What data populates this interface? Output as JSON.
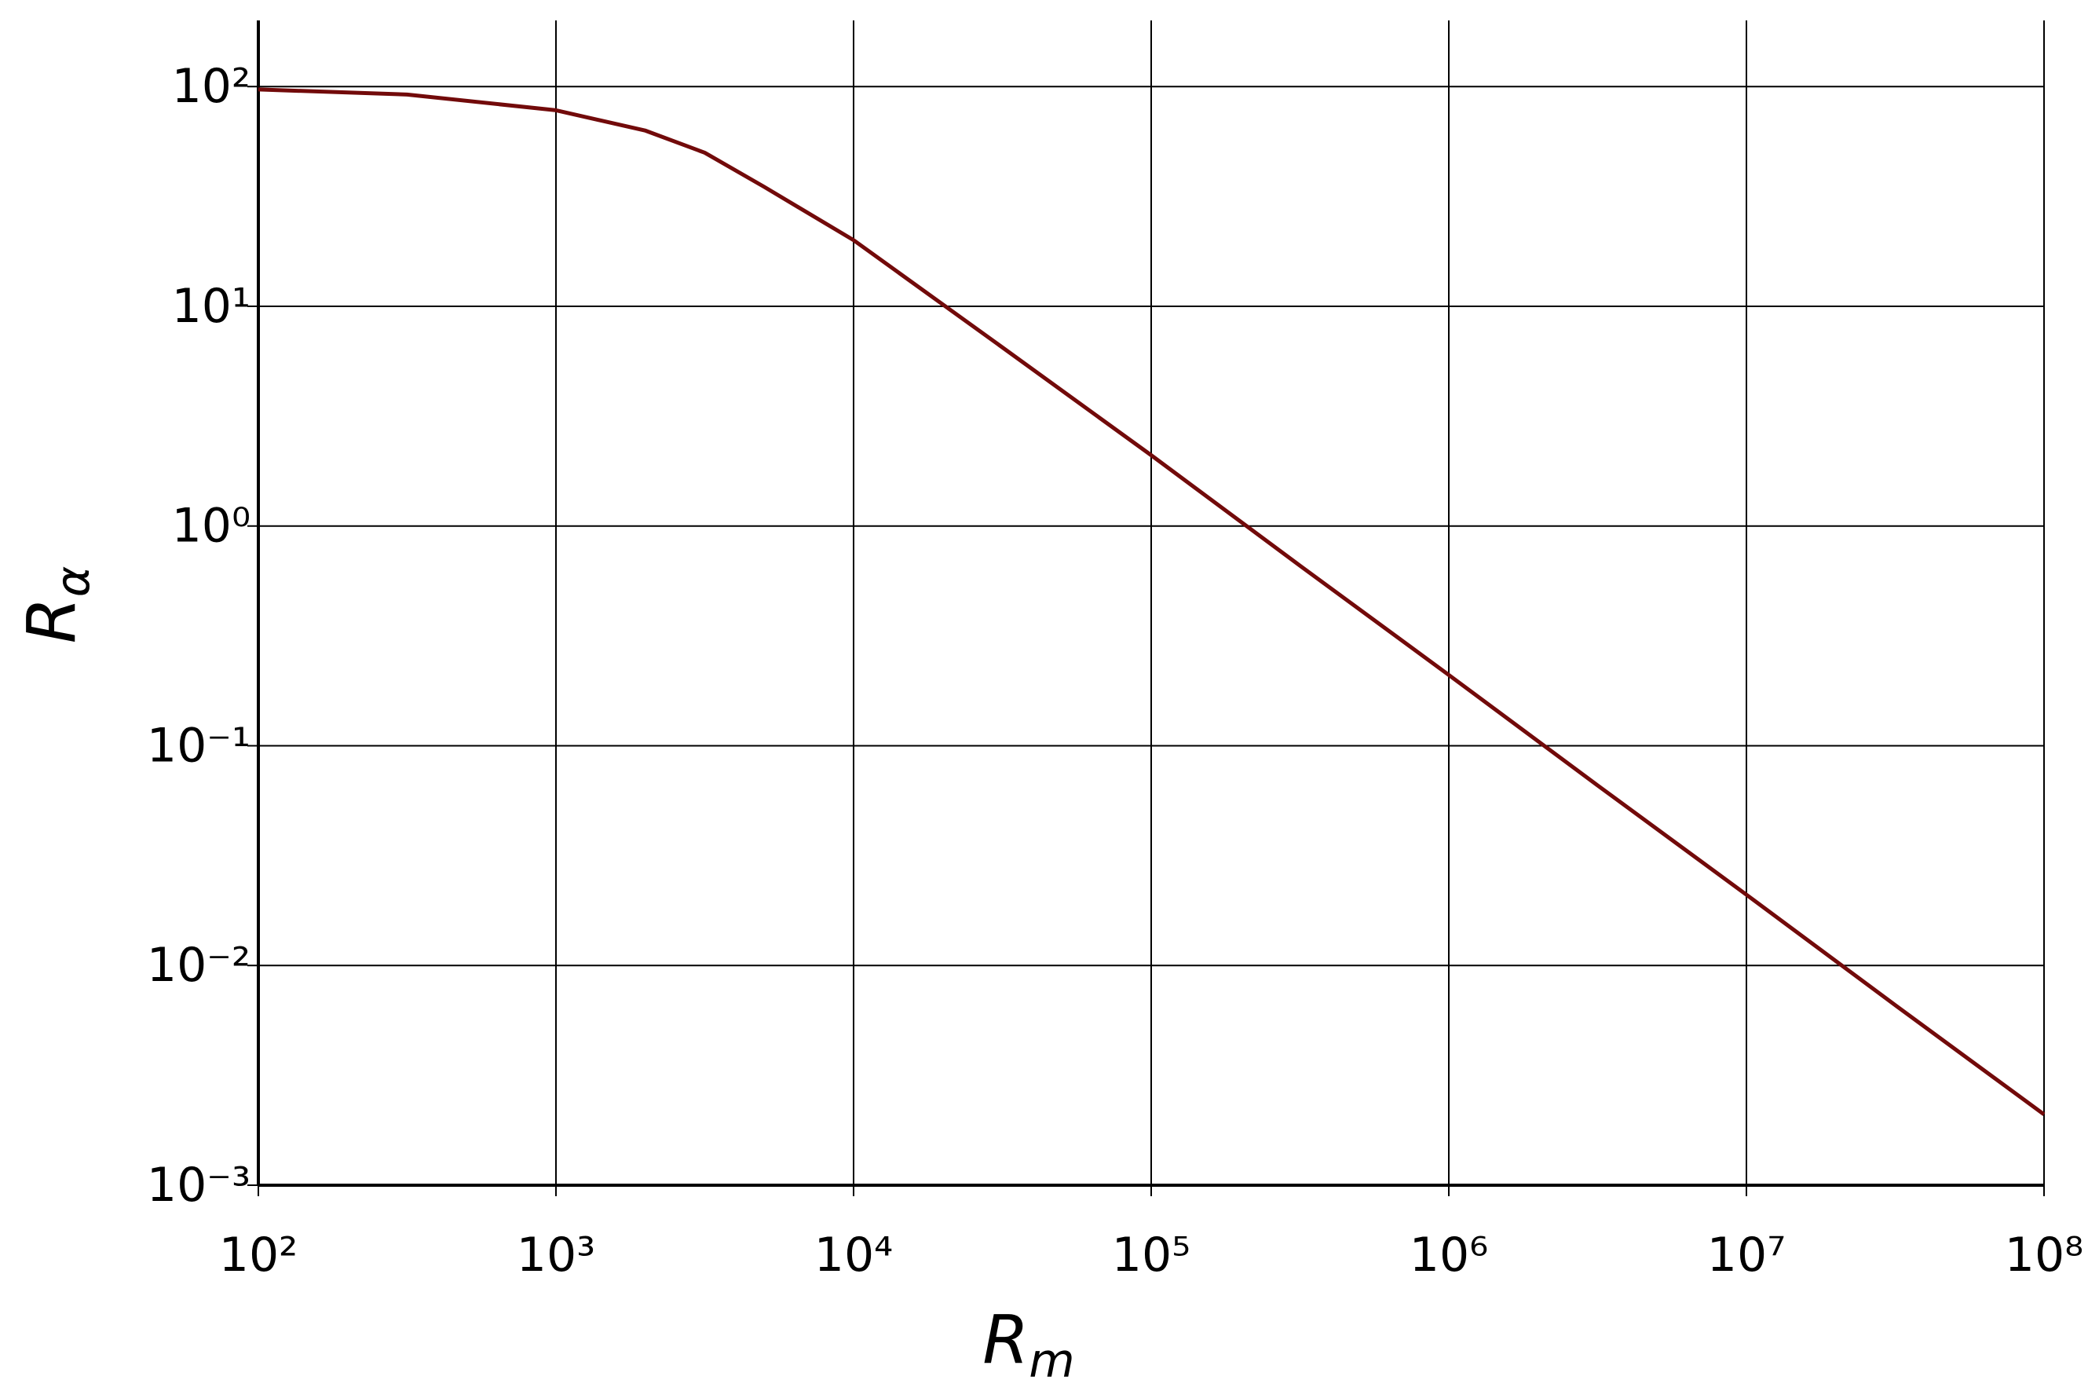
{
  "chart_data": {
    "type": "line",
    "xlabel": {
      "text": "R",
      "sub": "m"
    },
    "ylabel": {
      "text": "R",
      "sub": "α"
    },
    "xscale": "log",
    "yscale": "log",
    "grid": true,
    "xlim": [
      100,
      100000000
    ],
    "ylim": [
      0.001,
      200
    ],
    "xticks": [
      {
        "value": 100,
        "label": "10²"
      },
      {
        "value": 1000,
        "label": "10³"
      },
      {
        "value": 10000,
        "label": "10⁴"
      },
      {
        "value": 100000,
        "label": "10⁵"
      },
      {
        "value": 1000000,
        "label": "10⁶"
      },
      {
        "value": 10000000,
        "label": "10⁷"
      },
      {
        "value": 100000000,
        "label": "10⁸"
      }
    ],
    "yticks": [
      {
        "value": 0.001,
        "label": "10⁻³"
      },
      {
        "value": 0.01,
        "label": "10⁻²"
      },
      {
        "value": 0.1,
        "label": "10⁻¹"
      },
      {
        "value": 1,
        "label": "10⁰"
      },
      {
        "value": 10,
        "label": "10¹"
      },
      {
        "value": 100,
        "label": "10²"
      }
    ],
    "x": [
      100,
      316,
      1000,
      2000,
      3162,
      5000,
      10000,
      31623,
      100000,
      316228,
      1000000,
      3162278,
      10000000,
      31622777,
      100000000
    ],
    "series": [
      {
        "color": "#720a0a",
        "values": [
          97,
          92,
          78,
          63,
          50,
          35,
          20,
          6.5,
          2.1,
          0.66,
          0.21,
          0.066,
          0.021,
          0.0066,
          0.0021
        ]
      }
    ]
  }
}
